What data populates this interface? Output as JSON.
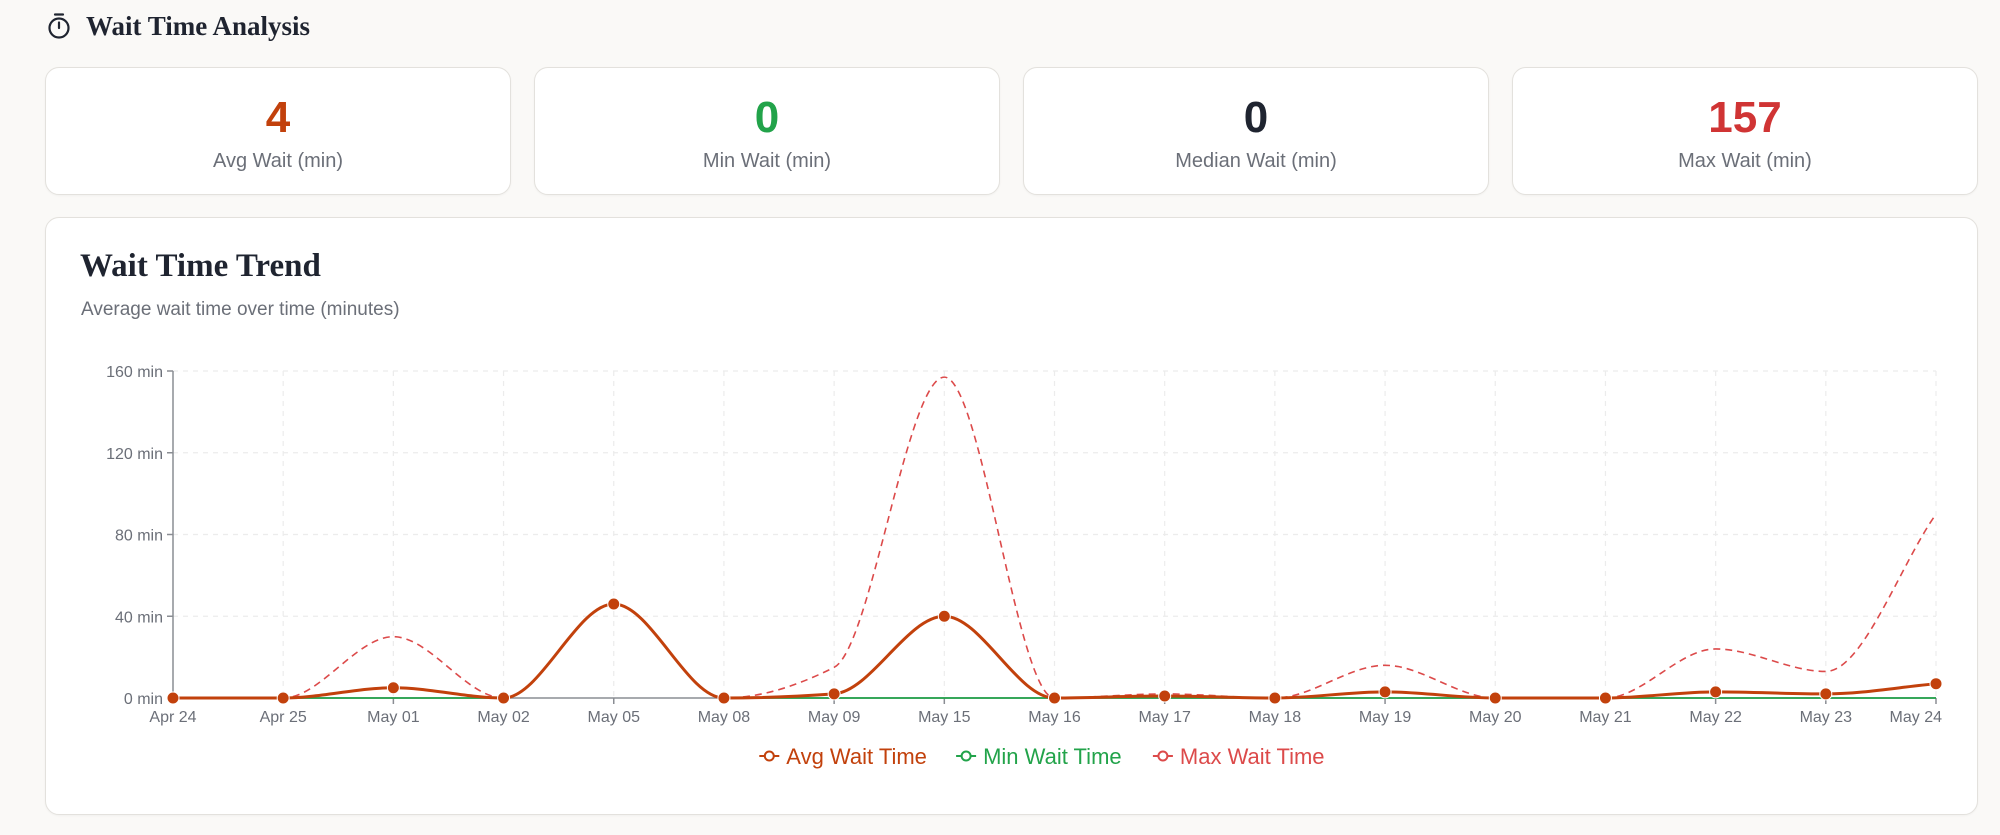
{
  "header": {
    "title": "Wait Time Analysis",
    "icon": "timer-icon"
  },
  "kpis": [
    {
      "value": "4",
      "label": "Avg Wait (min)",
      "color": "#c2410c"
    },
    {
      "value": "0",
      "label": "Min Wait (min)",
      "color": "#22a34a"
    },
    {
      "value": "0",
      "label": "Median Wait (min)",
      "color": "#1f2430"
    },
    {
      "value": "157",
      "label": "Max Wait (min)",
      "color": "#d03434"
    }
  ],
  "chart": {
    "title": "Wait Time Trend",
    "subtitle": "Average wait time over time (minutes)"
  },
  "chart_data": {
    "type": "line",
    "title": "Wait Time Trend",
    "subtitle": "Average wait time over time (minutes)",
    "categories": [
      "Apr 24",
      "Apr 25",
      "May 01",
      "May 02",
      "May 05",
      "May 08",
      "May 09",
      "May 15",
      "May 16",
      "May 17",
      "May 18",
      "May 19",
      "May 20",
      "May 21",
      "May 22",
      "May 23",
      "May 24"
    ],
    "ylim": [
      0,
      160
    ],
    "yticks": [
      0,
      40,
      80,
      120,
      160
    ],
    "ytick_labels": [
      "0 min",
      "40 min",
      "80 min",
      "120 min",
      "160 min"
    ],
    "grid": true,
    "legend_position": "bottom",
    "series": [
      {
        "name": "Avg Wait Time",
        "color": "#c2410c",
        "style": "solid",
        "markers": true,
        "values": [
          0,
          0,
          5,
          0,
          46,
          0,
          2,
          40,
          0,
          1,
          0,
          3,
          0,
          0,
          3,
          2,
          7
        ]
      },
      {
        "name": "Min Wait Time",
        "color": "#22a34a",
        "style": "solid",
        "markers": false,
        "values": [
          0,
          0,
          0,
          0,
          46,
          0,
          0,
          0,
          0,
          0,
          0,
          0,
          0,
          0,
          0,
          0,
          0
        ]
      },
      {
        "name": "Max Wait Time",
        "color": "#dc4a4a",
        "style": "dashed",
        "markers": false,
        "values": [
          0,
          0,
          30,
          0,
          46,
          0,
          15,
          157,
          0,
          2,
          0,
          16,
          0,
          0,
          24,
          13,
          90
        ]
      }
    ]
  }
}
